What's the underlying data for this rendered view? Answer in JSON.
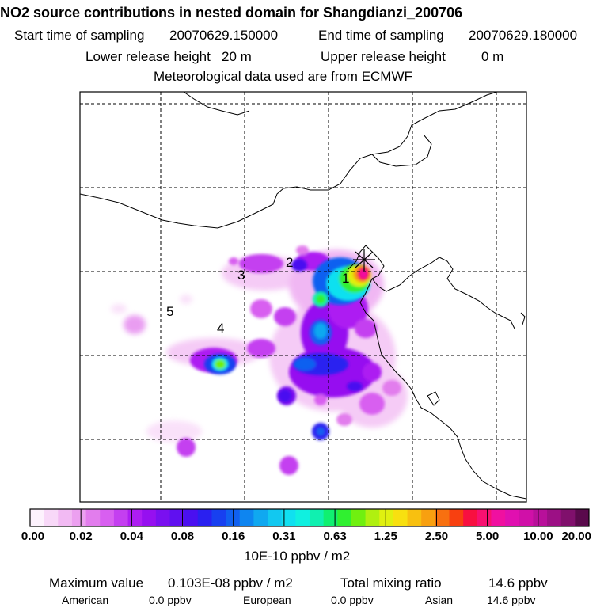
{
  "header": {
    "title": "NO2 source contributions in nested domain for Shangdianzi_200706",
    "start_label": "Start time of sampling",
    "start_value": "20070629.150000",
    "end_label": "End time of sampling",
    "end_value": "20070629.180000",
    "lower_label": "Lower release height",
    "lower_value": "20 m",
    "upper_label": "Upper release height",
    "upper_value": "0 m",
    "met_line": "Meteorological data used are from ECMWF"
  },
  "map": {
    "site_labels": [
      "1",
      "2",
      "3",
      "4",
      "5"
    ],
    "receptor_marker": "x-cross",
    "colors": {
      "frame": "#000000",
      "grid": "#000000",
      "coast": "#000000"
    }
  },
  "colorbar": {
    "unit": "10E-10 ppbv / m2",
    "tick_labels": [
      "0.00",
      "0.02",
      "0.04",
      "0.08",
      "0.16",
      "0.31",
      "0.63",
      "1.25",
      "2.50",
      "5.00",
      "10.00",
      "20.00"
    ],
    "colors": [
      "#fdf2fd",
      "#f8d8f8",
      "#f2baf3",
      "#eca0f0",
      "#e27ded",
      "#d85ff0",
      "#c43ff0",
      "#ad1df2",
      "#9610f0",
      "#7a10f0",
      "#6010f0",
      "#4a10f0",
      "#2a20f0",
      "#1840f0",
      "#1060f0",
      "#0e85f0",
      "#10a8f0",
      "#12c8f0",
      "#10e0f0",
      "#10f0e0",
      "#10f0b0",
      "#10f070",
      "#30f030",
      "#70f010",
      "#b0f010",
      "#e0f010",
      "#f8e010",
      "#f8c010",
      "#f8a010",
      "#f87010",
      "#f84010",
      "#f81040",
      "#f81070",
      "#f010a0",
      "#e010b0",
      "#d010a8",
      "#b8109a",
      "#9c1085",
      "#80106c",
      "#5a0a4c"
    ]
  },
  "footer": {
    "max_label": "Maximum value",
    "max_value": "0.103E-08 ppbv / m2",
    "total_label": "Total mixing ratio",
    "total_value": "14.6 ppbv",
    "regions": [
      {
        "name": "American",
        "value": "0.0 ppbv"
      },
      {
        "name": "European",
        "value": "0.0 ppbv"
      },
      {
        "name": "Asian",
        "value": "14.6 ppbv"
      }
    ]
  }
}
